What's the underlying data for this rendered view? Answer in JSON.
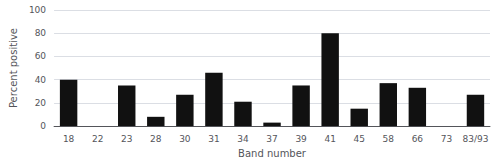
{
  "chart_data": {
    "type": "bar",
    "categories": [
      "18",
      "22",
      "23",
      "28",
      "30",
      "31",
      "34",
      "37",
      "39",
      "41",
      "45",
      "58",
      "66",
      "73",
      "83/93"
    ],
    "values": [
      40,
      0,
      35,
      8,
      27,
      46,
      21,
      3,
      35,
      80,
      15,
      37,
      33,
      0,
      27
    ],
    "color": "#111111",
    "xlabel": "Band number",
    "ylabel": "Percent positive",
    "ylim": [
      0,
      100
    ],
    "yticks": [
      0,
      20,
      40,
      60,
      80,
      100
    ],
    "grid": true
  }
}
